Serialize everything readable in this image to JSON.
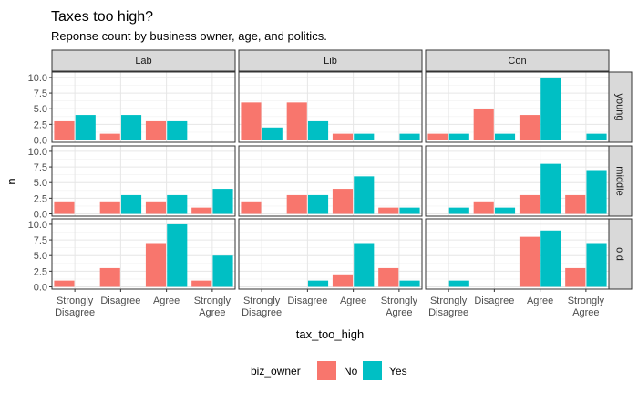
{
  "chart_data": {
    "type": "bar",
    "title": "Taxes too high?",
    "subtitle": "Reponse count by business owner, age, and politics.",
    "xlabel": "tax_too_high",
    "ylabel": "n",
    "ylim": [
      0,
      10.5
    ],
    "yticks": [
      0.0,
      2.5,
      5.0,
      7.5,
      10.0
    ],
    "ytick_labels": [
      "0.0",
      "2.5",
      "5.0",
      "7.5",
      "10.0"
    ],
    "grid": true,
    "legend_position": "bottom",
    "legend_title": "biz_owner",
    "categories": [
      "Strongly\nDisagree",
      "Disagree",
      "Agree",
      "Strongly\nAgree"
    ],
    "col_facets": [
      "Lab",
      "Lib",
      "Con"
    ],
    "row_facets": [
      "young",
      "middle",
      "old"
    ],
    "series": [
      {
        "name": "No",
        "color": "#F8766D"
      },
      {
        "name": "Yes",
        "color": "#00BFC4"
      }
    ],
    "panels": [
      {
        "row": "young",
        "col": "Lab",
        "No": [
          3,
          1,
          3,
          null
        ],
        "Yes": [
          4,
          4,
          3,
          null
        ]
      },
      {
        "row": "young",
        "col": "Lib",
        "No": [
          6,
          6,
          1,
          null
        ],
        "Yes": [
          2,
          3,
          1,
          1
        ]
      },
      {
        "row": "young",
        "col": "Con",
        "No": [
          1,
          5,
          4,
          null
        ],
        "Yes": [
          1,
          1,
          10,
          1
        ]
      },
      {
        "row": "middle",
        "col": "Lab",
        "No": [
          2,
          2,
          2,
          1
        ],
        "Yes": [
          null,
          3,
          3,
          4
        ]
      },
      {
        "row": "middle",
        "col": "Lib",
        "No": [
          2,
          3,
          4,
          1
        ],
        "Yes": [
          null,
          3,
          6,
          1
        ]
      },
      {
        "row": "middle",
        "col": "Con",
        "No": [
          null,
          2,
          3,
          3
        ],
        "Yes": [
          1,
          1,
          8,
          7
        ]
      },
      {
        "row": "old",
        "col": "Lab",
        "No": [
          1,
          3,
          7,
          1
        ],
        "Yes": [
          null,
          null,
          10,
          5
        ]
      },
      {
        "row": "old",
        "col": "Lib",
        "No": [
          null,
          null,
          2,
          3
        ],
        "Yes": [
          null,
          1,
          7,
          1
        ]
      },
      {
        "row": "old",
        "col": "Con",
        "No": [
          null,
          null,
          8,
          3
        ],
        "Yes": [
          1,
          null,
          9,
          7
        ]
      }
    ]
  }
}
